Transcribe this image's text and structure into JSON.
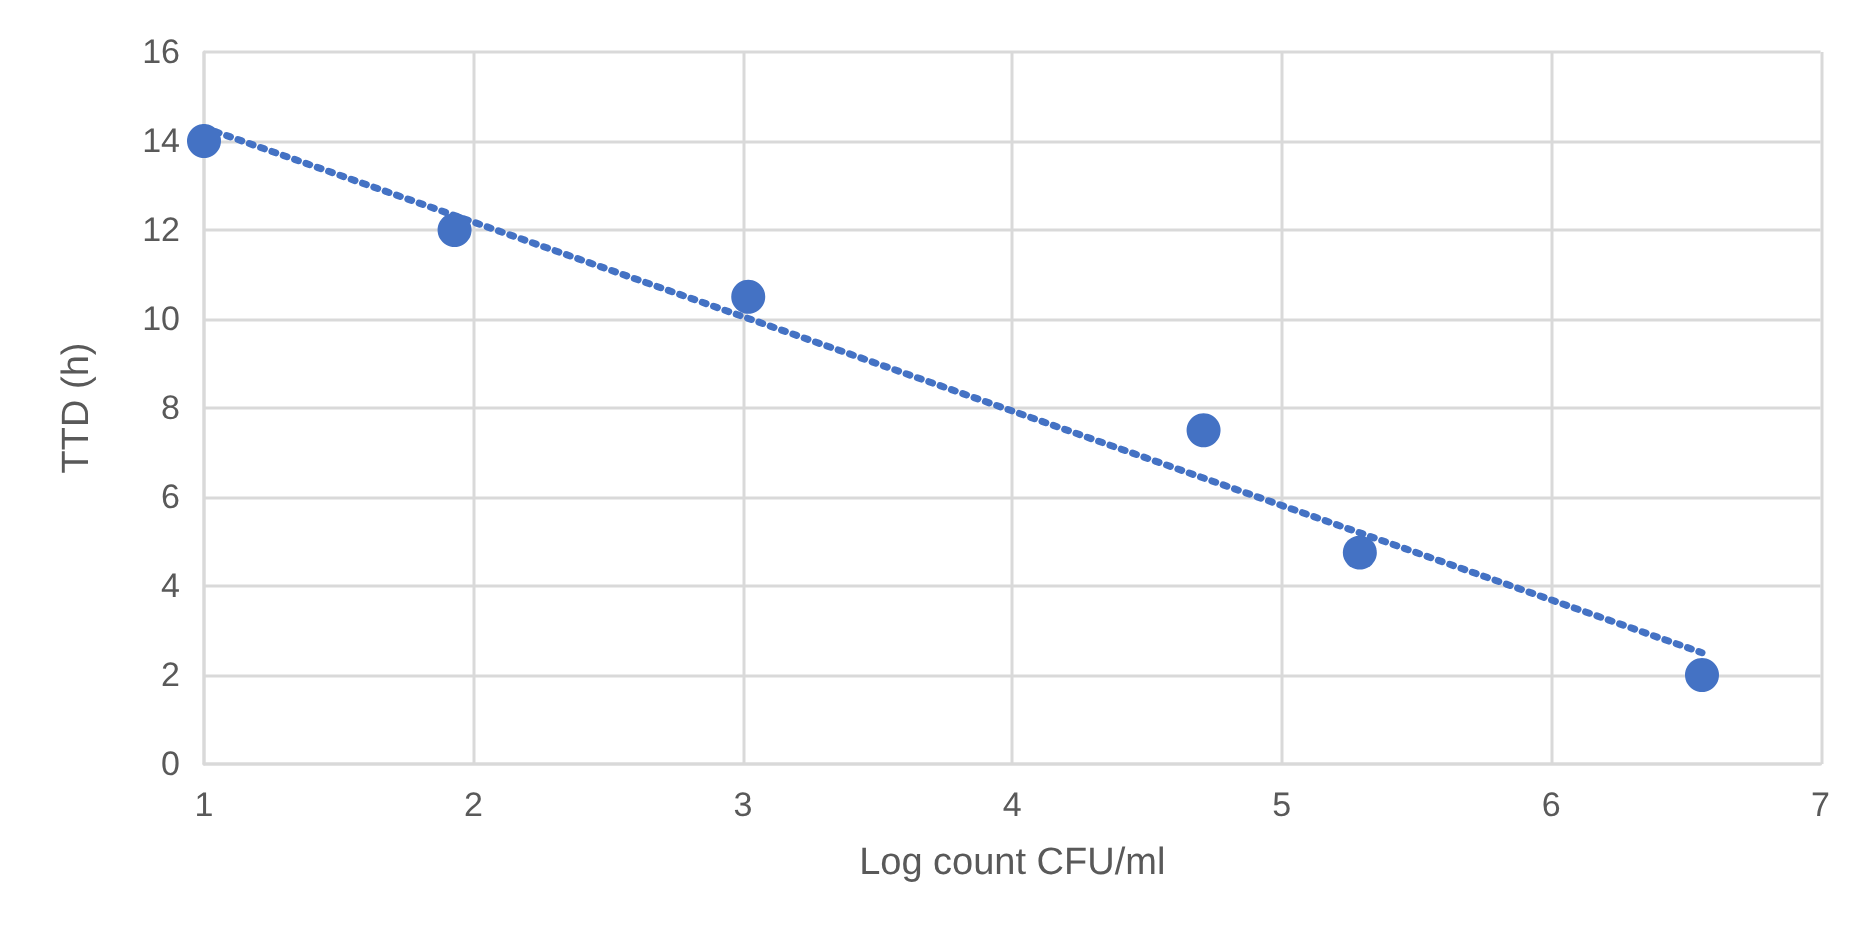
{
  "chart_data": {
    "type": "scatter",
    "xlabel": "Log count CFU/ml",
    "ylabel": "TTD (h)",
    "x": [
      1,
      1.93,
      3.02,
      4.71,
      5.29,
      6.56
    ],
    "series": [
      {
        "color": "#4472c4",
        "marker": "circle",
        "values": [
          14,
          12,
          10.5,
          7.5,
          4.75,
          2
        ]
      },
      {
        "type": "line",
        "color": "#4472c4",
        "x": [
          1,
          6.56
        ],
        "values": [
          14.3,
          2.5
        ],
        "line_style": "dotted",
        "marker": "none"
      }
    ],
    "xlim": [
      1,
      7
    ],
    "xticks": [
      1,
      2,
      3,
      4,
      5,
      6,
      7
    ],
    "ylim": [
      0,
      16
    ],
    "yticks": [
      0,
      2,
      4,
      6,
      8,
      10,
      12,
      14,
      16
    ],
    "grid": true
  }
}
